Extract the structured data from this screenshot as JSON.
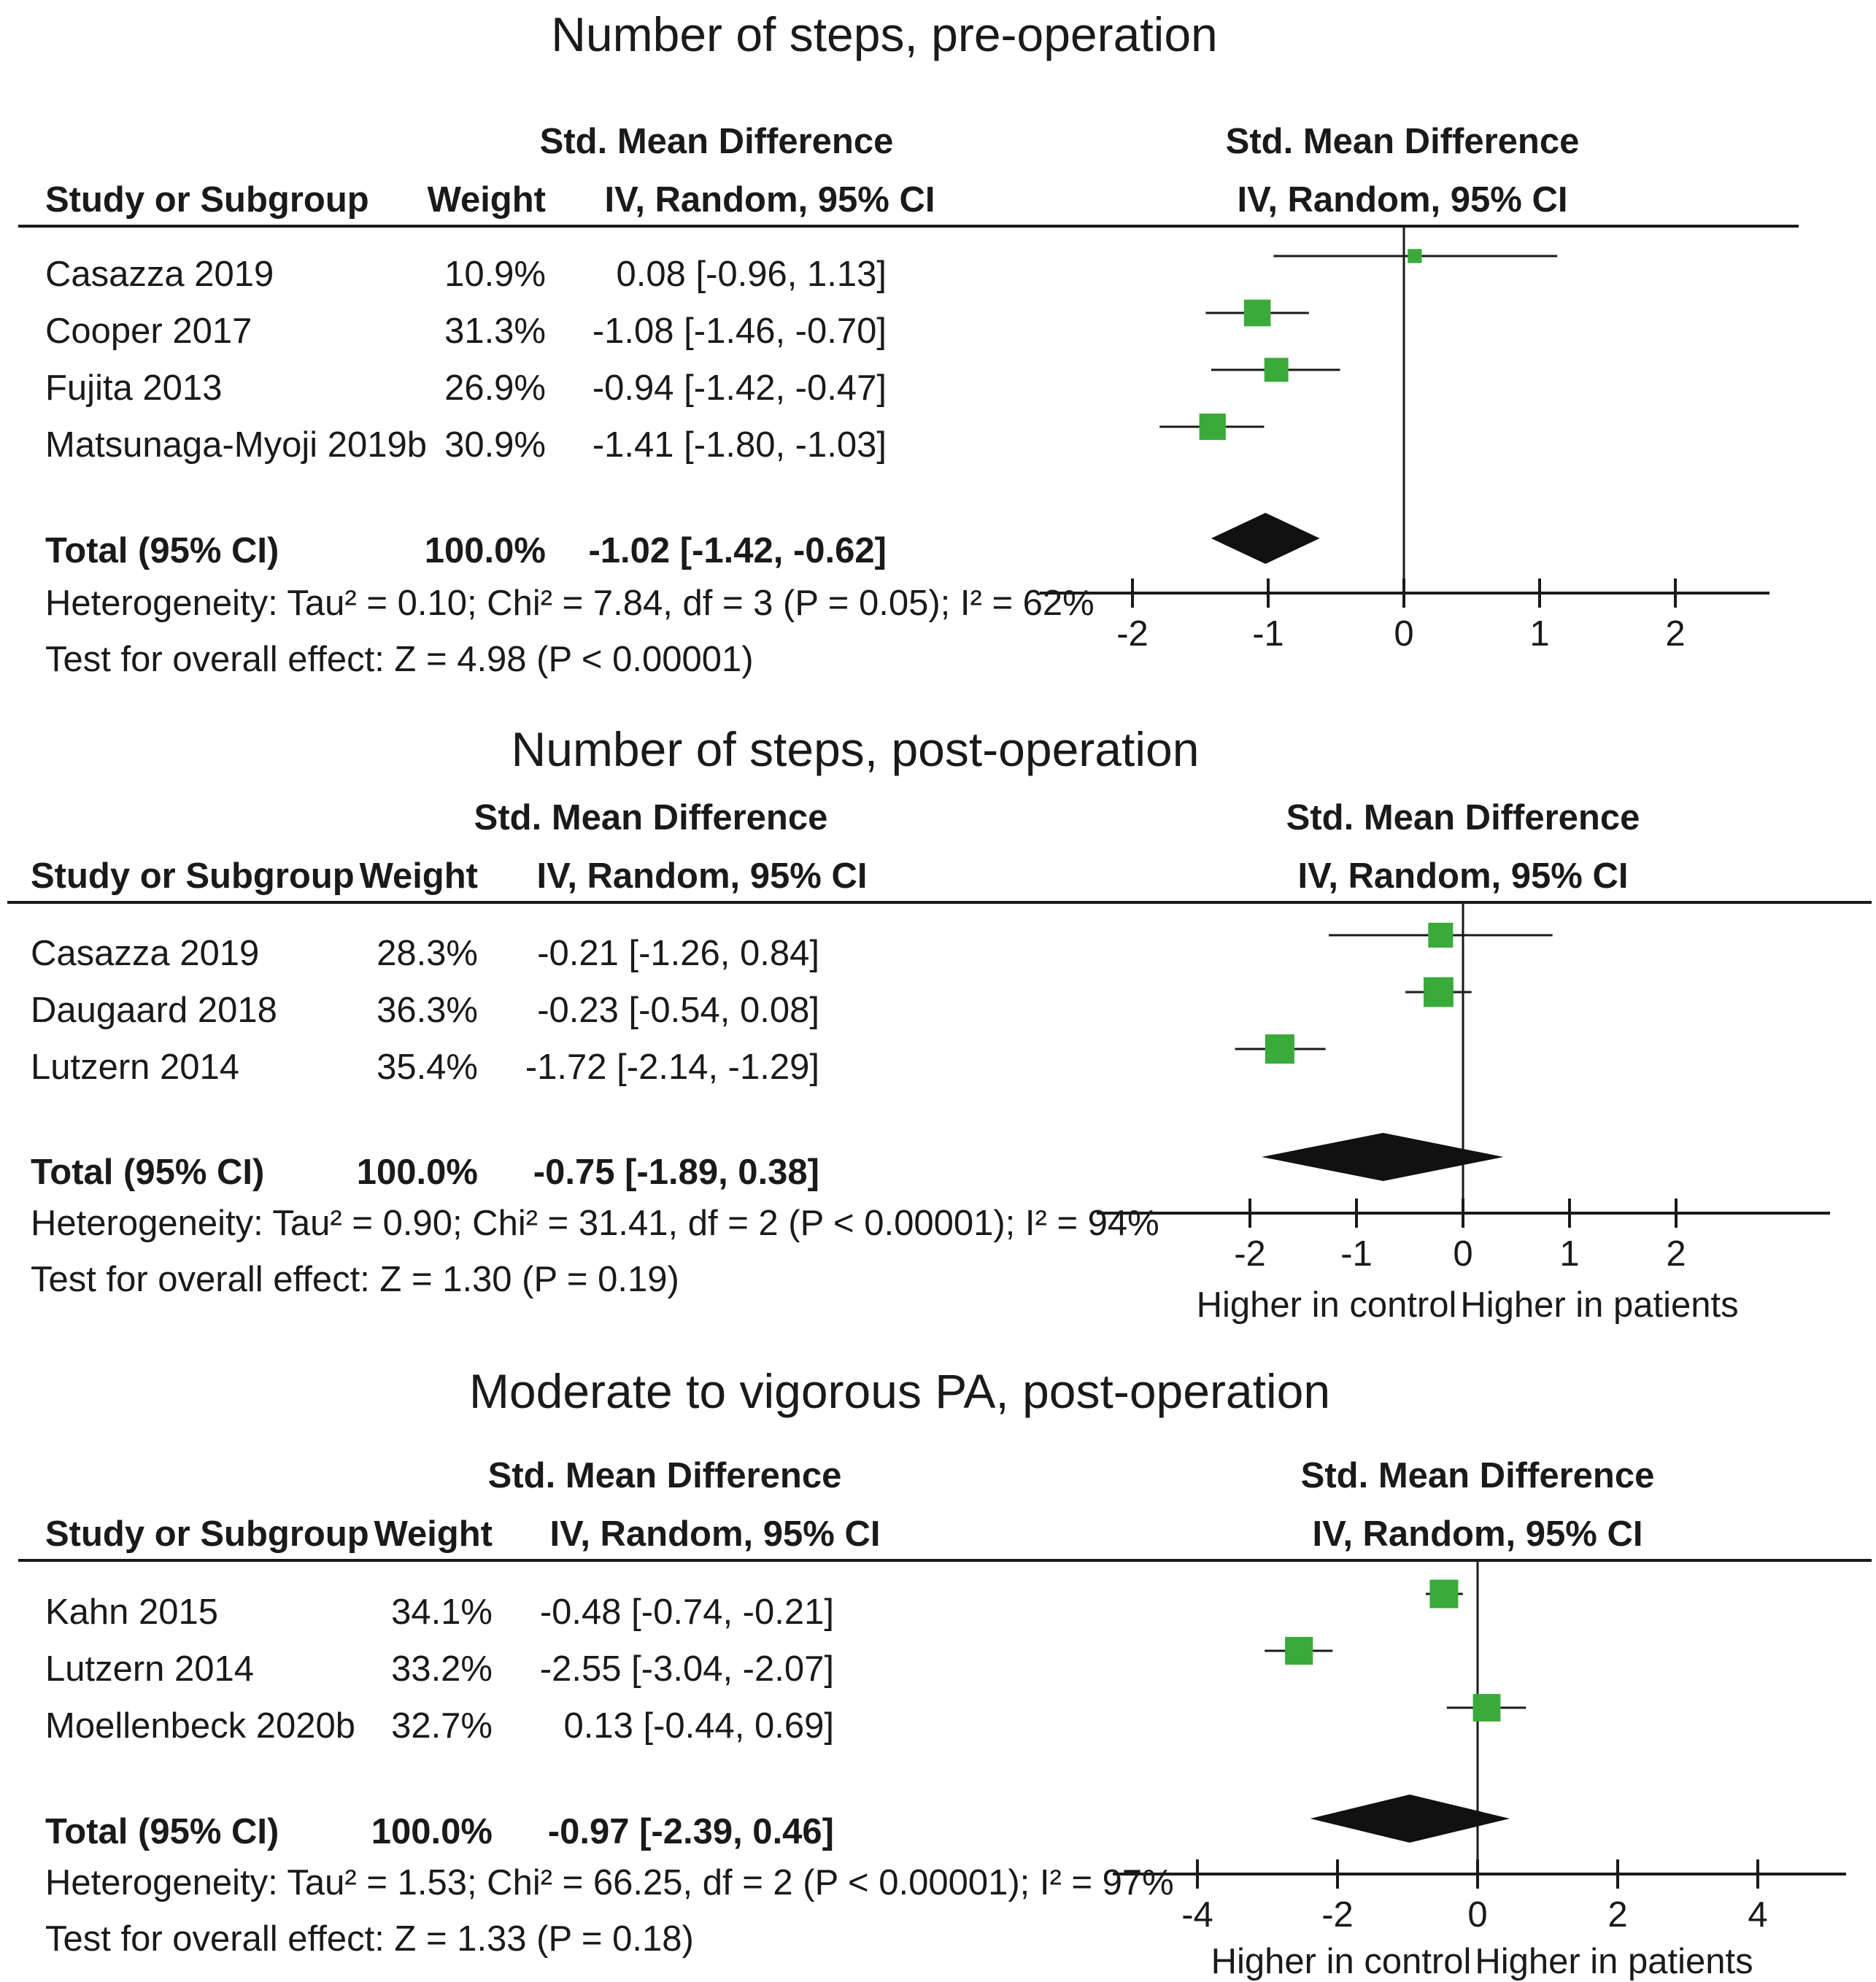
{
  "figure": {
    "panels": [
      {
        "title": "Number of steps, pre-operation",
        "headers": {
          "col_study": "Study or Subgroup",
          "col_weight": "Weight",
          "col_effect_top": "Std. Mean Difference",
          "col_effect_bottom": "IV, Random, 95% CI",
          "plot_top": "Std. Mean Difference",
          "plot_bottom": "IV, Random, 95% CI"
        },
        "studies": [
          {
            "name": "Casazza 2019",
            "weight": "10.9%",
            "ci_text": "0.08 [-0.96, 1.13]"
          },
          {
            "name": "Cooper 2017",
            "weight": "31.3%",
            "ci_text": "-1.08 [-1.46, -0.70]"
          },
          {
            "name": "Fujita 2013",
            "weight": "26.9%",
            "ci_text": "-0.94 [-1.42, -0.47]"
          },
          {
            "name": "Matsunaga-Myoji 2019b",
            "weight": "30.9%",
            "ci_text": "-1.41 [-1.80, -1.03]"
          }
        ],
        "total": {
          "label": "Total (95% CI)",
          "weight": "100.0%",
          "ci_text": "-1.02 [-1.42, -0.62]"
        },
        "heterogeneity": "Heterogeneity: Tau² = 0.10; Chi² = 7.84, df = 3 (P = 0.05); I² = 62%",
        "overall": "Test for overall effect: Z = 4.98 (P < 0.00001)",
        "axis_ticks": [
          "-2",
          "-1",
          "0",
          "1",
          "2"
        ],
        "favours_left": "",
        "favours_right": ""
      },
      {
        "title": "Number of steps, post-operation",
        "headers": {
          "col_study": "Study or Subgroup",
          "col_weight": "Weight",
          "col_effect_top": "Std. Mean Difference",
          "col_effect_bottom": "IV, Random, 95% CI",
          "plot_top": "Std. Mean Difference",
          "plot_bottom": "IV, Random, 95% CI"
        },
        "studies": [
          {
            "name": "Casazza 2019",
            "weight": "28.3%",
            "ci_text": "-0.21 [-1.26, 0.84]"
          },
          {
            "name": "Daugaard 2018",
            "weight": "36.3%",
            "ci_text": "-0.23 [-0.54, 0.08]"
          },
          {
            "name": "Lutzern 2014",
            "weight": "35.4%",
            "ci_text": "-1.72 [-2.14, -1.29]"
          }
        ],
        "total": {
          "label": "Total (95% CI)",
          "weight": "100.0%",
          "ci_text": "-0.75 [-1.89, 0.38]"
        },
        "heterogeneity": "Heterogeneity: Tau² = 0.90; Chi² = 31.41, df = 2 (P < 0.00001); I² = 94%",
        "overall": "Test for overall effect: Z = 1.30 (P = 0.19)",
        "axis_ticks": [
          "-2",
          "-1",
          "0",
          "1",
          "2"
        ],
        "favours_left": "Higher in control",
        "favours_right": "Higher in patients"
      },
      {
        "title": "Moderate to vigorous PA, post-operation",
        "headers": {
          "col_study": "Study or Subgroup",
          "col_weight": "Weight",
          "col_effect_top": "Std. Mean Difference",
          "col_effect_bottom": "IV, Random, 95% CI",
          "plot_top": "Std. Mean Difference",
          "plot_bottom": "IV, Random, 95% CI"
        },
        "studies": [
          {
            "name": "Kahn 2015",
            "weight": "34.1%",
            "ci_text": "-0.48 [-0.74, -0.21]"
          },
          {
            "name": "Lutzern 2014",
            "weight": "33.2%",
            "ci_text": "-2.55 [-3.04, -2.07]"
          },
          {
            "name": "Moellenbeck 2020b",
            "weight": "32.7%",
            "ci_text": "0.13 [-0.44, 0.69]"
          }
        ],
        "total": {
          "label": "Total (95% CI)",
          "weight": "100.0%",
          "ci_text": "-0.97 [-2.39, 0.46]"
        },
        "heterogeneity": "Heterogeneity: Tau² = 1.53; Chi² = 66.25, df = 2 (P < 0.00001); I² = 97%",
        "overall": "Test for overall effect: Z = 1.33 (P = 0.18)",
        "axis_ticks": [
          "-4",
          "-2",
          "0",
          "2",
          "4"
        ],
        "favours_left": "Higher in control",
        "favours_right": "Higher in patients"
      }
    ]
  },
  "colors": {
    "study_marker": "#3aaa3a",
    "pooled_diamond": "#111111",
    "ink": "#1a1a1a"
  },
  "chart_data": [
    {
      "type": "forest",
      "title": "Number of steps, pre-operation",
      "effect_measure": "Std. Mean Difference, IV, Random, 95% CI",
      "xlim": [
        -2,
        2
      ],
      "studies": [
        {
          "name": "Casazza 2019",
          "weight": 10.9,
          "estimate": 0.08,
          "lower": -0.96,
          "upper": 1.13
        },
        {
          "name": "Cooper 2017",
          "weight": 31.3,
          "estimate": -1.08,
          "lower": -1.46,
          "upper": -0.7
        },
        {
          "name": "Fujita 2013",
          "weight": 26.9,
          "estimate": -0.94,
          "lower": -1.42,
          "upper": -0.47
        },
        {
          "name": "Matsunaga-Myoji 2019b",
          "weight": 30.9,
          "estimate": -1.41,
          "lower": -1.8,
          "upper": -1.03
        }
      ],
      "pooled": {
        "estimate": -1.02,
        "lower": -1.42,
        "upper": -0.62,
        "weight": 100.0
      },
      "heterogeneity": {
        "tau2": 0.1,
        "chi2": 7.84,
        "df": 3,
        "p": 0.05,
        "i2": 62
      },
      "overall_effect": {
        "z": 4.98,
        "p": "< 0.00001"
      }
    },
    {
      "type": "forest",
      "title": "Number of steps, post-operation",
      "effect_measure": "Std. Mean Difference, IV, Random, 95% CI",
      "xlim": [
        -2,
        2
      ],
      "studies": [
        {
          "name": "Casazza 2019",
          "weight": 28.3,
          "estimate": -0.21,
          "lower": -1.26,
          "upper": 0.84
        },
        {
          "name": "Daugaard 2018",
          "weight": 36.3,
          "estimate": -0.23,
          "lower": -0.54,
          "upper": 0.08
        },
        {
          "name": "Lutzern 2014",
          "weight": 35.4,
          "estimate": -1.72,
          "lower": -2.14,
          "upper": -1.29
        }
      ],
      "pooled": {
        "estimate": -0.75,
        "lower": -1.89,
        "upper": 0.38,
        "weight": 100.0
      },
      "heterogeneity": {
        "tau2": 0.9,
        "chi2": 31.41,
        "df": 2,
        "p": "< 0.00001",
        "i2": 94
      },
      "overall_effect": {
        "z": 1.3,
        "p": 0.19
      }
    },
    {
      "type": "forest",
      "title": "Moderate to vigorous PA, post-operation",
      "effect_measure": "Std. Mean Difference, IV, Random, 95% CI",
      "xlim": [
        -4,
        4
      ],
      "studies": [
        {
          "name": "Kahn 2015",
          "weight": 34.1,
          "estimate": -0.48,
          "lower": -0.74,
          "upper": -0.21
        },
        {
          "name": "Lutzern 2014",
          "weight": 33.2,
          "estimate": -2.55,
          "lower": -3.04,
          "upper": -2.07
        },
        {
          "name": "Moellenbeck 2020b",
          "weight": 32.7,
          "estimate": 0.13,
          "lower": -0.44,
          "upper": 0.69
        }
      ],
      "pooled": {
        "estimate": -0.97,
        "lower": -2.39,
        "upper": 0.46,
        "weight": 100.0
      },
      "heterogeneity": {
        "tau2": 1.53,
        "chi2": 66.25,
        "df": 2,
        "p": "< 0.00001",
        "i2": 97
      },
      "overall_effect": {
        "z": 1.33,
        "p": 0.18
      }
    }
  ]
}
